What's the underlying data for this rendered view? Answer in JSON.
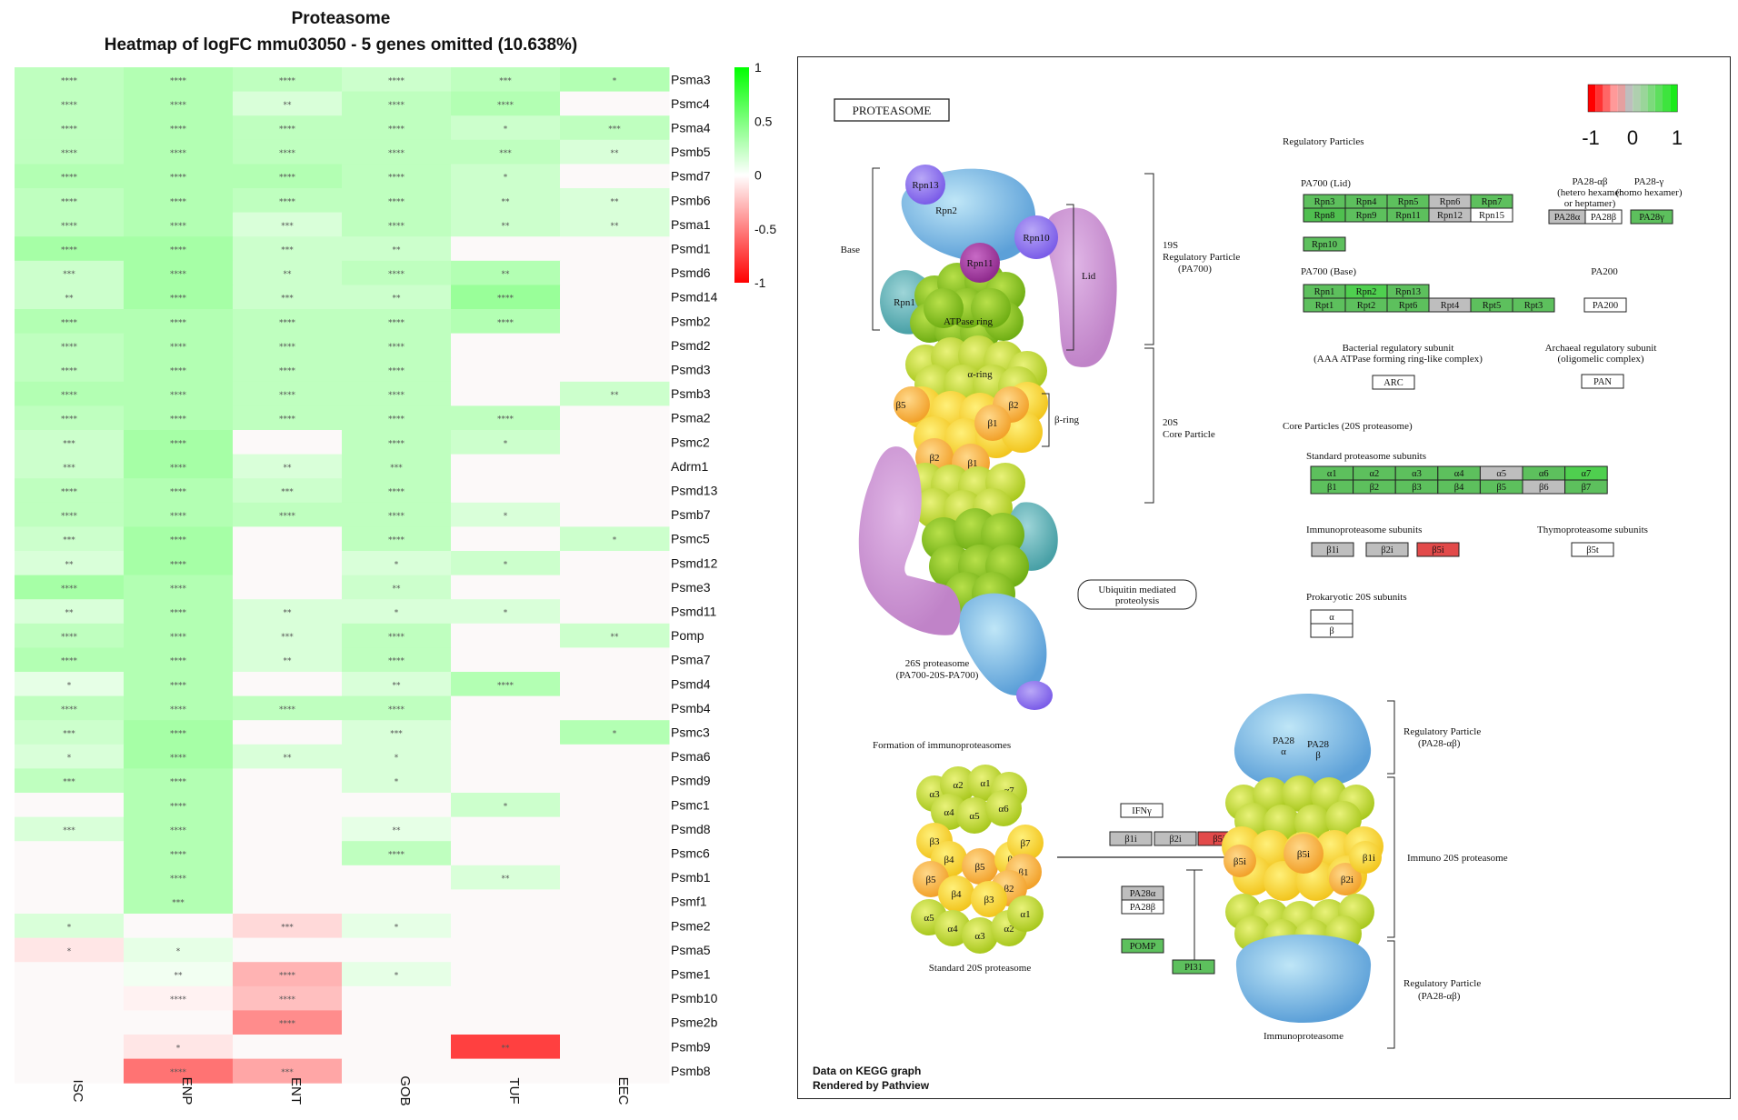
{
  "heatmap": {
    "title": "Proteasome",
    "subtitle": "Heatmap of logFC mmu03050 - 5 genes omitted (10.638%)",
    "colors": {
      "neg": "#FF0000",
      "mid": "#FFFFFF",
      "pos": "#00FF00"
    }
  },
  "chart_data": {
    "type": "heatmap",
    "title": "Proteasome",
    "subtitle": "Heatmap of logFC mmu03050 - 5 genes omitted (10.638%)",
    "x_categories": [
      "ISC",
      "ENP",
      "ENT",
      "GOB",
      "TUF",
      "EEC"
    ],
    "y_categories": [
      "Psma3",
      "Psmc4",
      "Psma4",
      "Psmb5",
      "Psmd7",
      "Psmb6",
      "Psma1",
      "Psmd1",
      "Psmd6",
      "Psmd14",
      "Psmb2",
      "Psmd2",
      "Psmd3",
      "Psmb3",
      "Psma2",
      "Psmc2",
      "Adrm1",
      "Psmd13",
      "Psmb7",
      "Psmc5",
      "Psmd12",
      "Psme3",
      "Psmd11",
      "Pomp",
      "Psma7",
      "Psmd4",
      "Psmb4",
      "Psmc3",
      "Psma6",
      "Psmd9",
      "Psmc1",
      "Psmd8",
      "Psmc6",
      "Psmb1",
      "Psmf1",
      "Psme2",
      "Psma5",
      "Psme1",
      "Psmb10",
      "Psme2b",
      "Psmb9",
      "Psmb8"
    ],
    "values": [
      [
        0.25,
        0.3,
        0.25,
        0.2,
        0.25,
        0.3
      ],
      [
        0.25,
        0.3,
        0.15,
        0.25,
        0.3,
        0
      ],
      [
        0.25,
        0.3,
        0.25,
        0.25,
        0.2,
        0.25
      ],
      [
        0.25,
        0.3,
        0.25,
        0.25,
        0.25,
        0.15
      ],
      [
        0.3,
        0.3,
        0.3,
        0.25,
        0.2,
        0
      ],
      [
        0.25,
        0.3,
        0.25,
        0.25,
        0.2,
        0.15
      ],
      [
        0.25,
        0.3,
        0.15,
        0.25,
        0.2,
        0.15
      ],
      [
        0.35,
        0.35,
        0.2,
        0.2,
        0,
        0
      ],
      [
        0.2,
        0.35,
        0.2,
        0.25,
        0.3,
        0
      ],
      [
        0.2,
        0.35,
        0.2,
        0.2,
        0.4,
        0
      ],
      [
        0.3,
        0.3,
        0.25,
        0.25,
        0.3,
        0
      ],
      [
        0.25,
        0.3,
        0.25,
        0.25,
        0,
        0
      ],
      [
        0.25,
        0.3,
        0.25,
        0.25,
        0,
        0
      ],
      [
        0.3,
        0.3,
        0.25,
        0.25,
        0,
        0.2
      ],
      [
        0.25,
        0.3,
        0.25,
        0.25,
        0.25,
        0
      ],
      [
        0.2,
        0.35,
        0,
        0.25,
        0.2,
        0
      ],
      [
        0.2,
        0.35,
        0.15,
        0.25,
        0,
        0
      ],
      [
        0.25,
        0.3,
        0.2,
        0.25,
        0,
        0
      ],
      [
        0.25,
        0.3,
        0.25,
        0.25,
        0.15,
        0
      ],
      [
        0.2,
        0.35,
        0,
        0.25,
        0,
        0.2
      ],
      [
        0.15,
        0.35,
        0,
        0.15,
        0.2,
        0
      ],
      [
        0.35,
        0.3,
        0,
        0.2,
        0,
        0
      ],
      [
        0.15,
        0.3,
        0.15,
        0.15,
        0.15,
        0
      ],
      [
        0.25,
        0.3,
        0.15,
        0.25,
        0,
        0.2
      ],
      [
        0.3,
        0.3,
        0.15,
        0.25,
        0,
        0
      ],
      [
        0.1,
        0.3,
        0,
        0.15,
        0.3,
        0
      ],
      [
        0.25,
        0.3,
        0.25,
        0.25,
        0,
        0
      ],
      [
        0.2,
        0.35,
        0,
        0.15,
        0,
        0.3
      ],
      [
        0.15,
        0.35,
        0.15,
        0.15,
        0,
        0
      ],
      [
        0.25,
        0.3,
        0,
        0.15,
        0,
        0
      ],
      [
        0,
        0.3,
        0,
        0,
        0.2,
        0
      ],
      [
        0.15,
        0.3,
        0,
        0.1,
        0,
        0
      ],
      [
        0,
        0.3,
        0,
        0.25,
        0,
        0
      ],
      [
        0,
        0.3,
        0,
        0,
        0.15,
        0
      ],
      [
        0,
        0.3,
        0,
        0,
        0,
        0
      ],
      [
        0.15,
        0,
        -0.15,
        0.1,
        0,
        0
      ],
      [
        -0.1,
        0.1,
        0,
        0,
        0,
        0
      ],
      [
        0,
        0.05,
        -0.3,
        0.1,
        0,
        0
      ],
      [
        0,
        -0.05,
        -0.25,
        0,
        0,
        0
      ],
      [
        0,
        0,
        -0.45,
        0,
        0,
        0
      ],
      [
        0,
        -0.1,
        0,
        0,
        -0.75,
        0
      ],
      [
        0,
        -0.55,
        -0.35,
        0,
        0,
        0
      ]
    ],
    "significance": [
      [
        "****",
        "****",
        "****",
        "****",
        "***",
        "*"
      ],
      [
        "****",
        "****",
        "**",
        "****",
        "****",
        ""
      ],
      [
        "****",
        "****",
        "****",
        "****",
        "*",
        "***"
      ],
      [
        "****",
        "****",
        "****",
        "****",
        "***",
        "**"
      ],
      [
        "****",
        "****",
        "****",
        "****",
        "*",
        ""
      ],
      [
        "****",
        "****",
        "****",
        "****",
        "**",
        "**"
      ],
      [
        "****",
        "****",
        "***",
        "****",
        "**",
        "**"
      ],
      [
        "****",
        "****",
        "***",
        "**",
        "",
        ""
      ],
      [
        "***",
        "****",
        "**",
        "****",
        "**",
        ""
      ],
      [
        "**",
        "****",
        "***",
        "**",
        "****",
        ""
      ],
      [
        "****",
        "****",
        "****",
        "****",
        "****",
        ""
      ],
      [
        "****",
        "****",
        "****",
        "****",
        "",
        ""
      ],
      [
        "****",
        "****",
        "****",
        "****",
        "",
        ""
      ],
      [
        "****",
        "****",
        "****",
        "****",
        "",
        "**"
      ],
      [
        "****",
        "****",
        "****",
        "****",
        "****",
        ""
      ],
      [
        "***",
        "****",
        "",
        "****",
        "*",
        ""
      ],
      [
        "***",
        "****",
        "**",
        "***",
        "",
        ""
      ],
      [
        "****",
        "****",
        "***",
        "****",
        "",
        ""
      ],
      [
        "****",
        "****",
        "****",
        "****",
        "*",
        ""
      ],
      [
        "***",
        "****",
        "",
        "****",
        "",
        "*"
      ],
      [
        "**",
        "****",
        "",
        "*",
        "*",
        ""
      ],
      [
        "****",
        "****",
        "",
        "**",
        "",
        ""
      ],
      [
        "**",
        "****",
        "**",
        "*",
        "*",
        ""
      ],
      [
        "****",
        "****",
        "***",
        "****",
        "",
        "**"
      ],
      [
        "****",
        "****",
        "**",
        "****",
        "",
        ""
      ],
      [
        "*",
        "****",
        "",
        "**",
        "****",
        ""
      ],
      [
        "****",
        "****",
        "****",
        "****",
        "",
        ""
      ],
      [
        "***",
        "****",
        "",
        "***",
        "",
        "*"
      ],
      [
        "*",
        "****",
        "**",
        "*",
        "",
        ""
      ],
      [
        "***",
        "****",
        "",
        "*",
        "",
        ""
      ],
      [
        "",
        "****",
        "",
        "",
        "*",
        ""
      ],
      [
        "***",
        "****",
        "",
        "**",
        "",
        ""
      ],
      [
        "",
        "****",
        "",
        "****",
        "",
        ""
      ],
      [
        "",
        "****",
        "",
        "",
        "**",
        ""
      ],
      [
        "",
        "***",
        "",
        "",
        "",
        ""
      ],
      [
        "*",
        "",
        "***",
        "*",
        "",
        ""
      ],
      [
        "*",
        "*",
        "",
        "",
        "",
        ""
      ],
      [
        "",
        "**",
        "****",
        "*",
        "",
        ""
      ],
      [
        "",
        "****",
        "****",
        "",
        "",
        ""
      ],
      [
        "",
        "",
        "****",
        "",
        "",
        ""
      ],
      [
        "",
        "*",
        "",
        "",
        "**",
        ""
      ],
      [
        "",
        "****",
        "***",
        "",
        "",
        ""
      ]
    ],
    "legend": {
      "ticks": [
        "1",
        "0.5",
        "0",
        "-0.5",
        "-1"
      ],
      "range": [
        -1,
        1
      ]
    }
  },
  "kegg": {
    "title_box": "PROTEASOME",
    "scale_ticks": [
      "-1",
      "0",
      "1"
    ],
    "labels": {
      "regulatory_particles": "Regulatory Particles",
      "pa700_lid": "PA700 (Lid)",
      "pa28ab": "PA28-αβ",
      "pa28ab_sub1": "(hetero hexamer",
      "pa28ab_sub2": "or heptamer)",
      "pa28g": "PA28-γ",
      "pa28g_sub": "(homo hexamer)",
      "pa700_base": "PA700 (Base)",
      "pa200": "PA200",
      "bacterial": "Bacterial regulatory subunit",
      "bacterial_sub": "(AAA ATPase forming ring-like complex)",
      "archaeal": "Archaeal regulatory subunit",
      "archaeal_sub": "(oligomelic complex)",
      "core_particles": "Core Particles (20S proteasome)",
      "standard_subunits": "Standard proteasome subunits",
      "immuno_subunits": "Immunoproteasome subunits",
      "thymo_subunits": "Thymoproteasome subunits",
      "prokaryotic": "Prokaryotic 20S subunits",
      "base": "Base",
      "lid": "Lid",
      "rp19s_1": "19S",
      "rp19s_2": "Regulatory Particle",
      "rp19s_3": "(PA700)",
      "cp20s_1": "20S",
      "cp20s_2": "Core Particle",
      "beta_ring": "β-ring",
      "alpha_ring": "α-ring",
      "atpase_ring": "ATPase ring",
      "ubiquitin_1": "Ubiquitin mediated",
      "ubiquitin_2": "proteolysis",
      "p26s_1": "26S proteasome",
      "p26s_2": "(PA700-20S-PA700)",
      "formation": "Formation of immunoproteasomes",
      "standard_20s": "Standard 20S proteasome",
      "immunoproteasome": "Immunoproteasome",
      "reg_particle_1": "Regulatory Particle",
      "reg_particle_2": "(PA28-αβ)",
      "immuno_20s": "Immuno 20S proteasome",
      "reg_particle_3": "Regulatory Particle",
      "reg_particle_4": "(PA28-αβ)"
    },
    "schematic_labels": {
      "rpn13": "Rpn13",
      "rpn2": "Rpn2",
      "rpn10": "Rpn10",
      "rpn11": "Rpn11",
      "rpn1": "Rpn1",
      "b5a": "β5",
      "b2a": "β2",
      "b1a": "β1",
      "b2b": "β2",
      "b1b": "β1",
      "s_a3": "α3",
      "s_a2": "α2",
      "s_a1": "α1",
      "s_a7": "α7",
      "s_a4": "α4",
      "s_a5": "α5",
      "s_a6": "α6",
      "s_b3": "β3",
      "s_b4": "β4",
      "s_b5": "β5",
      "s_b6": "β6",
      "s_b7": "β7",
      "s_b1": "β1",
      "s_b2": "β2",
      "s_b5b": "β5",
      "s_b4b": "β4",
      "s_b3b": "β3",
      "s_a5b": "α5",
      "s_a4b": "α4",
      "s_a3b": "α3",
      "s_a2b": "α2",
      "s_a1b": "α1",
      "i_pa28a_1": "PA28",
      "i_pa28a_2": "α",
      "i_pa28b_1": "PA28",
      "i_pa28b_2": "β",
      "i_b5i": "β5i",
      "i_b1i": "β1i",
      "i_b5i_c": "β5i",
      "i_b2i": "β2i"
    },
    "genes": {
      "rpn3": "Rpn3",
      "rpn4": "Rpn4",
      "rpn5": "Rpn5",
      "rpn6": "Rpn6",
      "rpn7": "Rpn7",
      "rpn8": "Rpn8",
      "rpn9": "Rpn9",
      "rpn11": "Rpn11",
      "rpn12": "Rpn12",
      "rpn15": "Rpn15",
      "pa28a": "PA28α",
      "pa28b": "PA28β",
      "pa28g": "PA28γ",
      "rpn10": "Rpn10",
      "rpn1": "Rpn1",
      "rpn2": "Rpn2",
      "rpn13": "Rpn13",
      "rpt1": "Rpt1",
      "rpt2": "Rpt2",
      "rpt6": "Rpt6",
      "rpt4": "Rpt4",
      "rpt5": "Rpt5",
      "rpt3": "Rpt3",
      "pa200": "PA200",
      "arc": "ARC",
      "pan": "PAN",
      "a1": "α1",
      "a2": "α2",
      "a3": "α3",
      "a4": "α4",
      "a5": "α5",
      "a6": "α6",
      "a7": "α7",
      "b1": "β1",
      "b2": "β2",
      "b3": "β3",
      "b4": "β4",
      "b5": "β5",
      "b6": "β6",
      "b7": "β7",
      "b1i": "β1i",
      "b2i": "β2i",
      "b5i": "β5i",
      "b5t": "β5t",
      "alpha": "α",
      "beta": "β",
      "ifng": "IFNγ",
      "f_b1i": "β1i",
      "f_b2i": "β2i",
      "f_b5i": "β5i",
      "f_pa28a": "PA28α",
      "f_pa28b": "PA28β",
      "pomp": "POMP",
      "pi31": "PI31"
    },
    "footer": {
      "line1": "Data on KEGG graph",
      "line2": "Rendered by Pathview"
    },
    "colors": {
      "green": "#5DC05D",
      "light_green": "#7FD27F",
      "grey": "#BEBEBE",
      "red": "#E24A4A",
      "white": "#FFFFFF"
    }
  }
}
